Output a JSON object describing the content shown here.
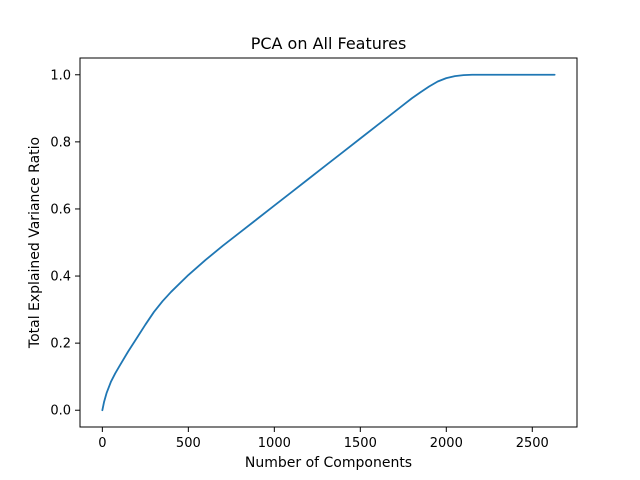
{
  "chart_data": {
    "type": "line",
    "title": "PCA on All Features",
    "xlabel": "Number of Components",
    "ylabel": "Total Explained Variance Ratio",
    "xlim": [
      -130,
      2760
    ],
    "ylim": [
      -0.05,
      1.05
    ],
    "xticks": [
      0,
      500,
      1000,
      1500,
      2000,
      2500
    ],
    "xtick_labels": [
      "0",
      "500",
      "1000",
      "1500",
      "2000",
      "2500"
    ],
    "yticks": [
      0.0,
      0.2,
      0.4,
      0.6,
      0.8,
      1.0
    ],
    "ytick_labels": [
      "0.0",
      "0.2",
      "0.4",
      "0.6",
      "0.8",
      "1.0"
    ],
    "grid": false,
    "series": [
      {
        "color": "#1f77b4",
        "x": [
          0,
          10,
          25,
          50,
          75,
          100,
          150,
          200,
          250,
          300,
          350,
          400,
          500,
          600,
          700,
          800,
          900,
          1000,
          1100,
          1200,
          1300,
          1400,
          1500,
          1600,
          1700,
          1750,
          1800,
          1850,
          1900,
          1950,
          2000,
          2050,
          2100,
          2150,
          2200,
          2300,
          2400,
          2500,
          2630
        ],
        "y": [
          0.0,
          0.025,
          0.052,
          0.085,
          0.11,
          0.132,
          0.175,
          0.215,
          0.255,
          0.293,
          0.325,
          0.353,
          0.403,
          0.448,
          0.49,
          0.53,
          0.57,
          0.61,
          0.65,
          0.69,
          0.73,
          0.77,
          0.81,
          0.85,
          0.89,
          0.91,
          0.93,
          0.948,
          0.965,
          0.98,
          0.99,
          0.996,
          0.999,
          1.0,
          1.0,
          1.0,
          1.0,
          1.0,
          1.0
        ]
      }
    ]
  }
}
